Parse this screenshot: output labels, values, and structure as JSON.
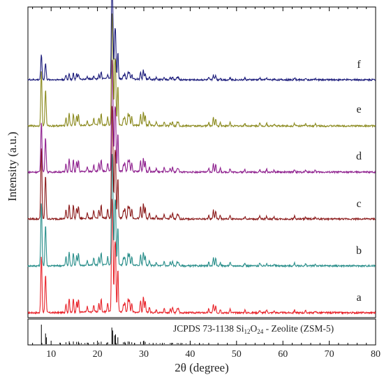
{
  "chart_data": {
    "type": "line",
    "xlabel": "2θ (degree)",
    "ylabel": "Intensity (a.u.)",
    "xlim": [
      5,
      80
    ],
    "x_ticks": [
      10,
      20,
      30,
      40,
      50,
      60,
      70,
      80
    ],
    "y_ticks_shown": false,
    "peaks_2theta": [
      7.9,
      8.8,
      13.2,
      13.9,
      14.8,
      15.5,
      15.9,
      17.8,
      19.2,
      20.3,
      20.8,
      22.2,
      23.1,
      23.3,
      23.7,
      23.9,
      24.4,
      25.6,
      25.9,
      26.6,
      26.9,
      27.4,
      29.3,
      29.9,
      30.3,
      31.2,
      32.7,
      34.4,
      35.7,
      36.2,
      37.2,
      37.5,
      44.0,
      45.0,
      45.5,
      46.5,
      48.6,
      51.8,
      55.0,
      56.5,
      58.1,
      62.5,
      64.9,
      67.0
    ],
    "series": [
      {
        "name": "a",
        "color": "#e8232a",
        "peak_intensity": [
          0.62,
          0.42,
          0.1,
          0.16,
          0.15,
          0.12,
          0.14,
          0.06,
          0.08,
          0.09,
          0.14,
          0.1,
          1.0,
          0.85,
          0.55,
          0.62,
          0.48,
          0.08,
          0.1,
          0.14,
          0.13,
          0.1,
          0.13,
          0.17,
          0.12,
          0.06,
          0.04,
          0.05,
          0.04,
          0.06,
          0.05,
          0.04,
          0.04,
          0.09,
          0.08,
          0.04,
          0.04,
          0.03,
          0.03,
          0.03,
          0.02,
          0.03,
          0.02,
          0.02
        ]
      },
      {
        "name": "b",
        "color": "#2a8f8b",
        "peak_intensity": [
          0.7,
          0.45,
          0.1,
          0.15,
          0.14,
          0.11,
          0.13,
          0.05,
          0.08,
          0.09,
          0.13,
          0.09,
          1.0,
          0.8,
          0.5,
          0.58,
          0.42,
          0.08,
          0.09,
          0.12,
          0.12,
          0.09,
          0.12,
          0.15,
          0.11,
          0.05,
          0.04,
          0.05,
          0.04,
          0.05,
          0.04,
          0.04,
          0.04,
          0.09,
          0.08,
          0.04,
          0.04,
          0.03,
          0.03,
          0.03,
          0.02,
          0.03,
          0.02,
          0.02
        ]
      },
      {
        "name": "c",
        "color": "#8b1a1a",
        "peak_intensity": [
          0.78,
          0.48,
          0.1,
          0.16,
          0.15,
          0.12,
          0.14,
          0.06,
          0.08,
          0.09,
          0.14,
          0.1,
          1.0,
          0.82,
          0.52,
          0.6,
          0.45,
          0.08,
          0.1,
          0.13,
          0.13,
          0.1,
          0.13,
          0.16,
          0.12,
          0.06,
          0.04,
          0.05,
          0.04,
          0.06,
          0.05,
          0.04,
          0.04,
          0.1,
          0.09,
          0.04,
          0.04,
          0.03,
          0.03,
          0.03,
          0.02,
          0.03,
          0.02,
          0.02
        ]
      },
      {
        "name": "d",
        "color": "#8e1f8e",
        "peak_intensity": [
          0.55,
          0.38,
          0.09,
          0.14,
          0.13,
          0.11,
          0.12,
          0.05,
          0.07,
          0.08,
          0.12,
          0.09,
          1.0,
          0.8,
          0.5,
          0.58,
          0.42,
          0.07,
          0.09,
          0.12,
          0.12,
          0.09,
          0.12,
          0.15,
          0.11,
          0.05,
          0.04,
          0.05,
          0.04,
          0.05,
          0.04,
          0.04,
          0.04,
          0.09,
          0.08,
          0.04,
          0.04,
          0.03,
          0.03,
          0.03,
          0.02,
          0.03,
          0.02,
          0.02
        ]
      },
      {
        "name": "e",
        "color": "#8b8a1e",
        "peak_intensity": [
          0.6,
          0.4,
          0.09,
          0.14,
          0.13,
          0.11,
          0.12,
          0.05,
          0.07,
          0.08,
          0.12,
          0.09,
          1.0,
          0.8,
          0.52,
          0.58,
          0.44,
          0.07,
          0.09,
          0.12,
          0.12,
          0.09,
          0.12,
          0.15,
          0.11,
          0.05,
          0.04,
          0.05,
          0.04,
          0.05,
          0.04,
          0.04,
          0.04,
          0.09,
          0.08,
          0.04,
          0.04,
          0.03,
          0.03,
          0.03,
          0.02,
          0.03,
          0.02,
          0.02
        ]
      },
      {
        "name": "f",
        "color": "#1a1a7a",
        "peak_intensity": [
          0.28,
          0.18,
          0.05,
          0.07,
          0.07,
          0.06,
          0.06,
          0.03,
          0.04,
          0.05,
          0.07,
          0.05,
          1.0,
          0.65,
          0.38,
          0.45,
          0.3,
          0.04,
          0.05,
          0.07,
          0.07,
          0.05,
          0.07,
          0.1,
          0.06,
          0.03,
          0.02,
          0.03,
          0.02,
          0.03,
          0.03,
          0.02,
          0.02,
          0.05,
          0.05,
          0.02,
          0.02,
          0.02,
          0.02,
          0.02,
          0.01,
          0.02,
          0.01,
          0.01
        ]
      }
    ],
    "reference": {
      "label_prefix": "JCPDS 73-1138  Si",
      "sub1": "12",
      "mid": "O",
      "sub2": "24",
      "label_suffix": " - Zeolite (ZSM-5)",
      "color": "#000000",
      "sticks": [
        [
          7.9,
          1.0
        ],
        [
          8.8,
          0.55
        ],
        [
          9.0,
          0.35
        ],
        [
          11.9,
          0.08
        ],
        [
          13.2,
          0.1
        ],
        [
          13.9,
          0.15
        ],
        [
          14.8,
          0.14
        ],
        [
          15.5,
          0.12
        ],
        [
          15.9,
          0.13
        ],
        [
          16.5,
          0.06
        ],
        [
          17.3,
          0.06
        ],
        [
          17.8,
          0.08
        ],
        [
          19.2,
          0.1
        ],
        [
          20.3,
          0.09
        ],
        [
          20.8,
          0.13
        ],
        [
          22.2,
          0.1
        ],
        [
          23.1,
          0.85
        ],
        [
          23.3,
          0.7
        ],
        [
          23.7,
          0.45
        ],
        [
          23.9,
          0.5
        ],
        [
          24.4,
          0.35
        ],
        [
          25.6,
          0.1
        ],
        [
          25.9,
          0.12
        ],
        [
          26.6,
          0.14
        ],
        [
          26.9,
          0.13
        ],
        [
          27.4,
          0.1
        ],
        [
          28.0,
          0.07
        ],
        [
          29.3,
          0.12
        ],
        [
          29.9,
          0.15
        ],
        [
          30.3,
          0.12
        ],
        [
          31.2,
          0.06
        ],
        [
          32.7,
          0.06
        ],
        [
          33.5,
          0.05
        ],
        [
          34.4,
          0.06
        ],
        [
          35.7,
          0.06
        ],
        [
          36.2,
          0.07
        ],
        [
          37.2,
          0.06
        ],
        [
          37.5,
          0.05
        ],
        [
          38.3,
          0.05
        ],
        [
          39.1,
          0.04
        ],
        [
          40.0,
          0.04
        ],
        [
          41.0,
          0.04
        ],
        [
          42.0,
          0.04
        ],
        [
          42.8,
          0.04
        ],
        [
          44.0,
          0.05
        ]
      ]
    },
    "grid": false
  }
}
